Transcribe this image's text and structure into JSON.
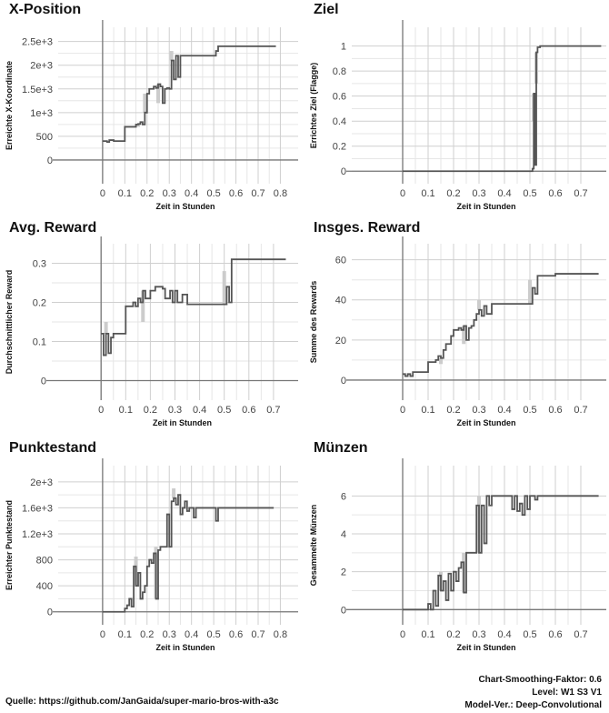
{
  "footer": {
    "source": "Quelle: https://github.com/JanGaida/super-mario-bros-with-a3c",
    "smoothing": "Chart-Smoothing-Faktor: 0.6",
    "level": "Level: W1 S3 V1",
    "model": "Model-Ver.: Deep-Convolutional"
  },
  "chart_data": [
    {
      "type": "line",
      "title": "X-Position",
      "xlabel": "Zeit in Stunden",
      "ylabel": "Erreichte X-Koordinate",
      "xlim": [
        -0.2,
        0.88
      ],
      "ylim": [
        -500,
        2800
      ],
      "xticks": [
        0,
        0.1,
        0.2,
        0.3,
        0.4,
        0.5,
        0.6,
        0.7,
        0.8
      ],
      "xtick_labels": [
        "0",
        "0.1",
        "0.2",
        "0.3",
        "0.4",
        "0.5",
        "0.6",
        "0.7",
        "0.8"
      ],
      "yticks": [
        0,
        500,
        1000,
        1500,
        2000,
        2500
      ],
      "ytick_labels": [
        "0",
        "500",
        "1e+3",
        "1.5e+3",
        "2e+3",
        "2.5e+3"
      ],
      "series": [
        {
          "x": [
            0,
            0.02,
            0.03,
            0.05,
            0.08,
            0.09,
            0.1,
            0.15,
            0.16,
            0.17,
            0.18,
            0.19,
            0.2,
            0.21,
            0.22,
            0.23,
            0.24,
            0.25,
            0.26,
            0.27,
            0.28,
            0.29,
            0.3,
            0.31,
            0.32,
            0.33,
            0.34,
            0.35,
            0.45,
            0.5,
            0.51,
            0.52,
            0.53,
            0.78
          ],
          "y": [
            400,
            380,
            420,
            400,
            400,
            400,
            700,
            750,
            760,
            800,
            750,
            1000,
            1400,
            1500,
            1500,
            1550,
            1520,
            1600,
            1550,
            1200,
            1500,
            1520,
            1500,
            2100,
            1700,
            2200,
            1750,
            2200,
            2200,
            2200,
            2300,
            2400,
            2400,
            2400
          ]
        }
      ],
      "raw": [
        {
          "x": 0.16,
          "y": 700
        },
        {
          "x": 0.19,
          "y": 1400
        },
        {
          "x": 0.25,
          "y": 1200
        },
        {
          "x": 0.31,
          "y": 2300
        }
      ]
    },
    {
      "type": "line",
      "title": "Ziel",
      "xlabel": "Zeit in Stunden",
      "ylabel": "Errichtes Ziel (Flagge)",
      "xlim": [
        -0.2,
        0.8
      ],
      "ylim": [
        -0.1,
        1.15
      ],
      "xticks": [
        0,
        0.1,
        0.2,
        0.3,
        0.4,
        0.5,
        0.6,
        0.7
      ],
      "xtick_labels": [
        "0",
        "0.1",
        "0.2",
        "0.3",
        "0.4",
        "0.5",
        "0.6",
        "0.7"
      ],
      "yticks": [
        0,
        0.2,
        0.4,
        0.6,
        0.8,
        1
      ],
      "ytick_labels": [
        "0",
        "0.2",
        "0.4",
        "0.6",
        "0.8",
        "1"
      ],
      "series": [
        {
          "x": [
            0,
            0.5,
            0.51,
            0.515,
            0.52,
            0.525,
            0.53,
            0.54,
            0.78
          ],
          "y": [
            0,
            0,
            0.02,
            0.62,
            0.05,
            0.95,
            0.99,
            1,
            1
          ]
        }
      ],
      "raw": [
        {
          "x": 0.515,
          "y": 0.4
        },
        {
          "x": 0.525,
          "y": 0.7
        }
      ]
    },
    {
      "type": "line",
      "title": "Avg. Reward",
      "xlabel": "Zeit in Stunden",
      "ylabel": "Durchschnittlicher Reward",
      "xlim": [
        -0.2,
        0.8
      ],
      "ylim": [
        -0.05,
        0.35
      ],
      "xticks": [
        0,
        0.1,
        0.2,
        0.3,
        0.4,
        0.5,
        0.6,
        0.7
      ],
      "xtick_labels": [
        "0",
        "0.1",
        "0.2",
        "0.3",
        "0.4",
        "0.5",
        "0.6",
        "0.7"
      ],
      "yticks": [
        0,
        0.1,
        0.2,
        0.3
      ],
      "ytick_labels": [
        "0",
        "0.1",
        "0.2",
        "0.3"
      ],
      "series": [
        {
          "x": [
            0,
            0.01,
            0.02,
            0.03,
            0.04,
            0.05,
            0.09,
            0.1,
            0.13,
            0.14,
            0.15,
            0.16,
            0.17,
            0.18,
            0.2,
            0.22,
            0.25,
            0.26,
            0.28,
            0.29,
            0.3,
            0.31,
            0.32,
            0.33,
            0.35,
            0.5,
            0.51,
            0.52,
            0.53,
            0.7,
            0.75
          ],
          "y": [
            0.12,
            0.065,
            0.12,
            0.07,
            0.11,
            0.12,
            0.12,
            0.19,
            0.2,
            0.19,
            0.21,
            0.2,
            0.23,
            0.21,
            0.23,
            0.24,
            0.235,
            0.21,
            0.23,
            0.2,
            0.23,
            0.2,
            0.2,
            0.22,
            0.195,
            0.195,
            0.24,
            0.2,
            0.31,
            0.31,
            0.31
          ]
        }
      ],
      "raw": [
        {
          "x": 0.02,
          "y": 0.15
        },
        {
          "x": 0.17,
          "y": 0.15
        },
        {
          "x": 0.5,
          "y": 0.28
        }
      ]
    },
    {
      "type": "line",
      "title": "Insges. Reward",
      "xlabel": "Zeit in Stunden",
      "ylabel": "Summe des Rewards",
      "xlim": [
        -0.2,
        0.8
      ],
      "ylim": [
        -10,
        68
      ],
      "xticks": [
        0,
        0.1,
        0.2,
        0.3,
        0.4,
        0.5,
        0.6,
        0.7
      ],
      "xtick_labels": [
        "0",
        "0.1",
        "0.2",
        "0.3",
        "0.4",
        "0.5",
        "0.6",
        "0.7"
      ],
      "yticks": [
        0,
        20,
        40,
        60
      ],
      "ytick_labels": [
        "0",
        "20",
        "40",
        "60"
      ],
      "series": [
        {
          "x": [
            0,
            0.01,
            0.02,
            0.03,
            0.04,
            0.09,
            0.1,
            0.13,
            0.14,
            0.15,
            0.16,
            0.17,
            0.19,
            0.2,
            0.22,
            0.23,
            0.24,
            0.25,
            0.26,
            0.27,
            0.28,
            0.29,
            0.3,
            0.31,
            0.32,
            0.33,
            0.35,
            0.5,
            0.51,
            0.52,
            0.53,
            0.6,
            0.77
          ],
          "y": [
            3,
            2,
            3,
            2,
            4,
            4,
            9,
            10,
            12,
            11,
            15,
            18,
            22,
            25,
            26,
            25,
            27,
            20,
            26,
            27,
            30,
            33,
            35,
            32,
            37,
            33,
            38,
            38,
            46,
            43,
            52,
            53,
            53
          ]
        }
      ],
      "raw": [
        {
          "x": 0.15,
          "y": 8
        },
        {
          "x": 0.24,
          "y": 18
        },
        {
          "x": 0.3,
          "y": 40
        },
        {
          "x": 0.5,
          "y": 50
        }
      ]
    },
    {
      "type": "line",
      "title": "Punktestand",
      "xlabel": "Zeit in Stunden",
      "ylabel": "Erreichter Punktestand",
      "xlim": [
        -0.2,
        0.88
      ],
      "ylim": [
        -200,
        2250
      ],
      "xticks": [
        0,
        0.1,
        0.2,
        0.3,
        0.4,
        0.5,
        0.6,
        0.7,
        0.8
      ],
      "xtick_labels": [
        "0",
        "0.1",
        "0.2",
        "0.3",
        "0.4",
        "0.5",
        "0.6",
        "0.7",
        "0.8"
      ],
      "yticks": [
        0,
        400,
        800,
        1200,
        1600,
        2000
      ],
      "ytick_labels": [
        "0",
        "400",
        "800",
        "1.2e+3",
        "1.6e+3",
        "2e+3"
      ],
      "series": [
        {
          "x": [
            0,
            0.09,
            0.1,
            0.11,
            0.12,
            0.13,
            0.14,
            0.15,
            0.16,
            0.17,
            0.18,
            0.19,
            0.2,
            0.21,
            0.22,
            0.23,
            0.24,
            0.25,
            0.26,
            0.27,
            0.28,
            0.29,
            0.3,
            0.31,
            0.32,
            0.33,
            0.34,
            0.35,
            0.36,
            0.37,
            0.38,
            0.39,
            0.4,
            0.41,
            0.42,
            0.43,
            0.45,
            0.5,
            0.51,
            0.52,
            0.53,
            0.6,
            0.77
          ],
          "y": [
            0,
            0,
            50,
            100,
            200,
            80,
            700,
            400,
            600,
            200,
            300,
            400,
            700,
            800,
            750,
            900,
            200,
            950,
            1000,
            1000,
            1000,
            1500,
            1000,
            1700,
            1750,
            1650,
            1800,
            1500,
            1600,
            1700,
            1550,
            1600,
            1600,
            1450,
            1600,
            1600,
            1600,
            1600,
            1400,
            1600,
            1600,
            1600,
            1600
          ]
        }
      ],
      "raw": [
        {
          "x": 0.15,
          "y": 850
        },
        {
          "x": 0.24,
          "y": 1000
        },
        {
          "x": 0.32,
          "y": 1900
        }
      ]
    },
    {
      "type": "line",
      "title": "Münzen",
      "xlabel": "Zeit in Stunden",
      "ylabel": "Gesammelte Münzen",
      "xlim": [
        -0.2,
        0.8
      ],
      "ylim": [
        -0.8,
        7.6
      ],
      "xticks": [
        0,
        0.1,
        0.2,
        0.3,
        0.4,
        0.5,
        0.6,
        0.7
      ],
      "xtick_labels": [
        "0",
        "0.1",
        "0.2",
        "0.3",
        "0.4",
        "0.5",
        "0.6",
        "0.7"
      ],
      "yticks": [
        0,
        2,
        4,
        6
      ],
      "ytick_labels": [
        "0",
        "2",
        "4",
        "6"
      ],
      "series": [
        {
          "x": [
            0,
            0.09,
            0.1,
            0.11,
            0.12,
            0.13,
            0.14,
            0.15,
            0.16,
            0.17,
            0.18,
            0.19,
            0.2,
            0.21,
            0.22,
            0.23,
            0.24,
            0.25,
            0.26,
            0.27,
            0.28,
            0.29,
            0.3,
            0.31,
            0.32,
            0.33,
            0.34,
            0.35,
            0.42,
            0.43,
            0.44,
            0.45,
            0.46,
            0.47,
            0.48,
            0.49,
            0.5,
            0.51,
            0.52,
            0.53,
            0.77
          ],
          "y": [
            0,
            0,
            0.3,
            0,
            1,
            0.2,
            1.8,
            1,
            1.5,
            0.5,
            1.9,
            1,
            2,
            1.5,
            2.2,
            2.5,
            0.9,
            3,
            3,
            3,
            3,
            5.5,
            3,
            5.5,
            3.5,
            6,
            5.5,
            6,
            6,
            5.3,
            6,
            5.2,
            5.6,
            5,
            6,
            5.3,
            6,
            6,
            5.8,
            6,
            6
          ]
        }
      ],
      "raw": [
        {
          "x": 0.15,
          "y": 2
        },
        {
          "x": 0.24,
          "y": 3
        },
        {
          "x": 0.3,
          "y": 6
        }
      ]
    }
  ]
}
